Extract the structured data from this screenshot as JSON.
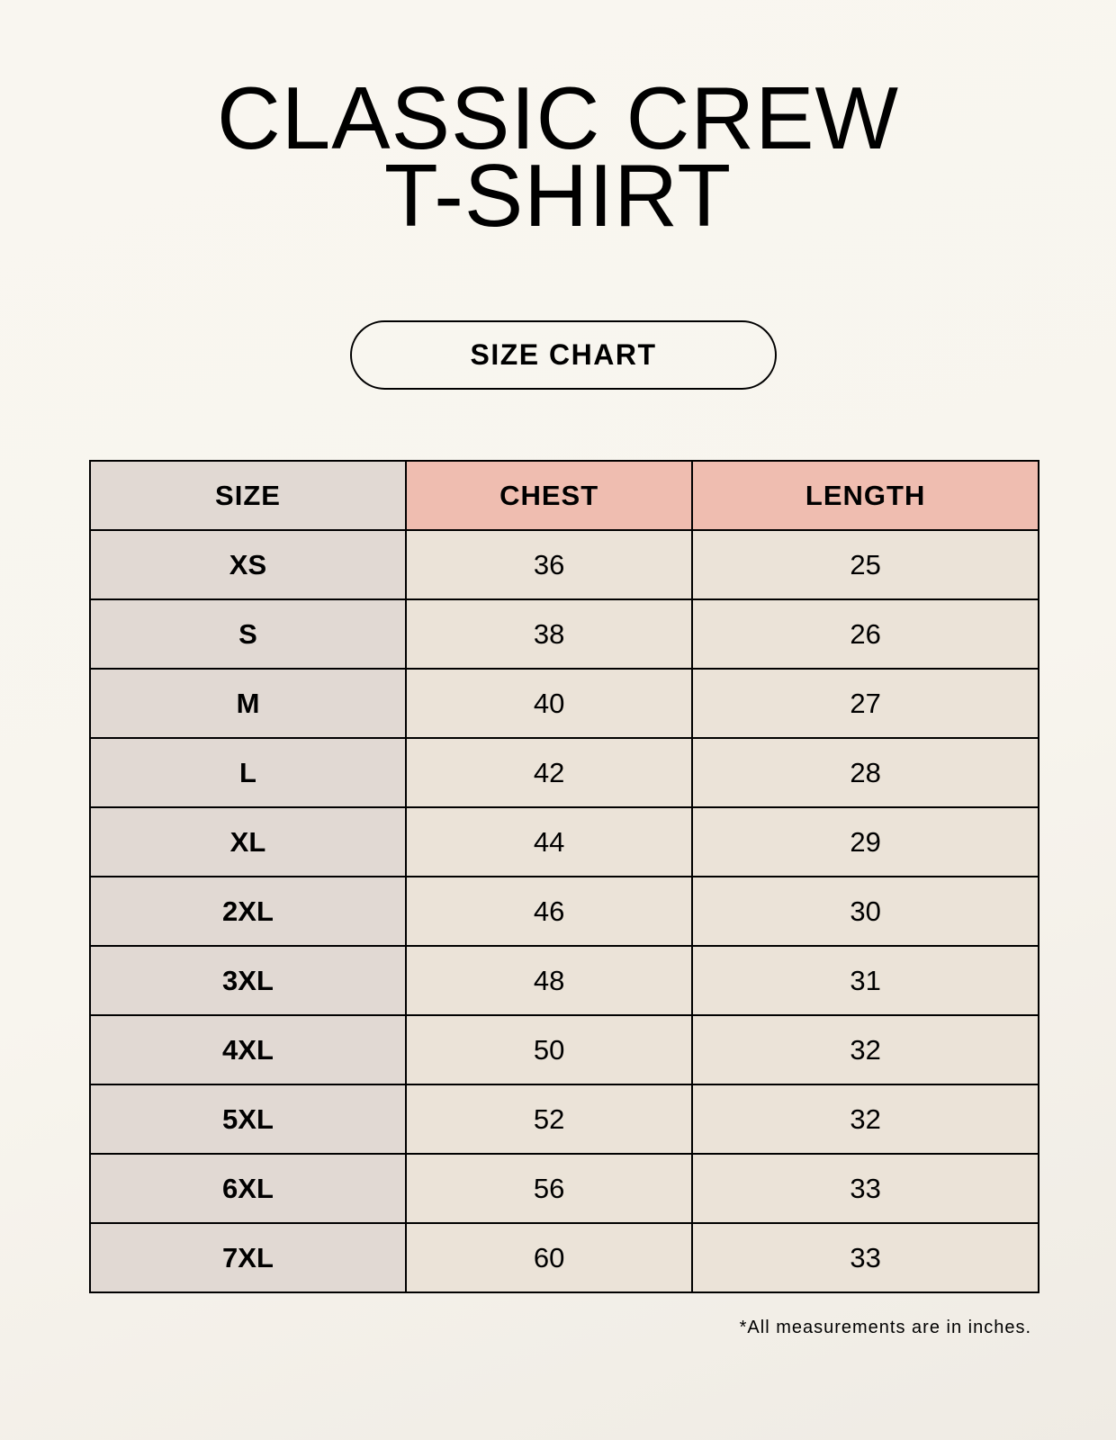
{
  "title_line1": "CLASSIC CREW",
  "title_line2": "T-SHIRT",
  "badge": "SIZE CHART",
  "table": {
    "headers": [
      "SIZE",
      "CHEST",
      "LENGTH"
    ],
    "rows": [
      [
        "XS",
        "36",
        "25"
      ],
      [
        "S",
        "38",
        "26"
      ],
      [
        "M",
        "40",
        "27"
      ],
      [
        "L",
        "42",
        "28"
      ],
      [
        "XL",
        "44",
        "29"
      ],
      [
        "2XL",
        "46",
        "30"
      ],
      [
        "3XL",
        "48",
        "31"
      ],
      [
        "4XL",
        "50",
        "32"
      ],
      [
        "5XL",
        "52",
        "32"
      ],
      [
        "6XL",
        "56",
        "33"
      ],
      [
        "7XL",
        "60",
        "33"
      ]
    ]
  },
  "footnote": "*All measurements are in inches.",
  "colors": {
    "size_col": "#e1d9d3",
    "header_accent": "#efbdb0",
    "value_cells": "#ebe3d8"
  }
}
